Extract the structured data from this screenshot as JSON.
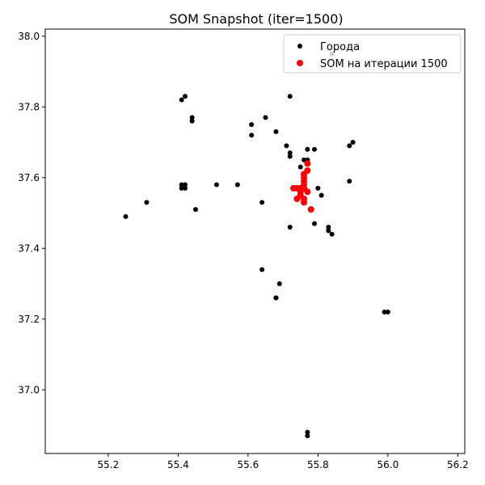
{
  "chart_data": {
    "type": "scatter",
    "title": "SOM Snapshot (iter=1500)",
    "xlabel": "",
    "ylabel": "",
    "xlim": [
      55.02,
      56.22
    ],
    "ylim": [
      36.82,
      38.02
    ],
    "x_ticks": [
      55.2,
      55.4,
      55.6,
      55.8,
      56.0,
      56.2
    ],
    "y_ticks": [
      37.0,
      37.2,
      37.4,
      37.6,
      37.8,
      38.0
    ],
    "x_tick_labels": [
      "55.2",
      "55.4",
      "55.6",
      "55.8",
      "56.0",
      "56.2"
    ],
    "y_tick_labels": [
      "37.0",
      "37.2",
      "37.4",
      "37.6",
      "37.8",
      "38.0"
    ],
    "grid": false,
    "legend_position": "top-right",
    "series": [
      {
        "name": "Города",
        "color": "#000000",
        "marker_size": "small",
        "points": [
          [
            55.42,
            37.83
          ],
          [
            55.41,
            37.82
          ],
          [
            55.44,
            37.77
          ],
          [
            55.44,
            37.76
          ],
          [
            55.72,
            37.83
          ],
          [
            55.65,
            37.77
          ],
          [
            55.61,
            37.75
          ],
          [
            55.61,
            37.72
          ],
          [
            55.68,
            37.73
          ],
          [
            55.84,
            37.95
          ],
          [
            55.9,
            37.7
          ],
          [
            55.89,
            37.69
          ],
          [
            55.71,
            37.69
          ],
          [
            55.77,
            37.68
          ],
          [
            55.79,
            37.68
          ],
          [
            55.72,
            37.67
          ],
          [
            55.72,
            37.66
          ],
          [
            55.76,
            37.65
          ],
          [
            55.77,
            37.65
          ],
          [
            55.75,
            37.63
          ],
          [
            55.89,
            37.59
          ],
          [
            55.41,
            37.58
          ],
          [
            55.42,
            37.58
          ],
          [
            55.42,
            37.57
          ],
          [
            55.41,
            37.57
          ],
          [
            55.51,
            37.58
          ],
          [
            55.57,
            37.58
          ],
          [
            55.73,
            37.57
          ],
          [
            55.8,
            37.57
          ],
          [
            55.81,
            37.55
          ],
          [
            55.64,
            37.53
          ],
          [
            55.31,
            37.53
          ],
          [
            55.25,
            37.49
          ],
          [
            55.45,
            37.51
          ],
          [
            55.79,
            37.47
          ],
          [
            55.72,
            37.46
          ],
          [
            55.83,
            37.46
          ],
          [
            55.83,
            37.45
          ],
          [
            55.84,
            37.44
          ],
          [
            55.64,
            37.34
          ],
          [
            55.69,
            37.3
          ],
          [
            55.68,
            37.26
          ],
          [
            55.68,
            37.26
          ],
          [
            55.99,
            37.22
          ],
          [
            56.0,
            37.22
          ],
          [
            55.77,
            36.87
          ],
          [
            55.77,
            36.88
          ]
        ]
      },
      {
        "name": "SOM на итерации 1500",
        "color": "#ff0000",
        "marker_size": "medium",
        "points": [
          [
            55.77,
            37.64
          ],
          [
            55.77,
            37.62
          ],
          [
            55.76,
            37.61
          ],
          [
            55.76,
            37.6
          ],
          [
            55.76,
            37.59
          ],
          [
            55.76,
            37.58
          ],
          [
            55.76,
            37.57
          ],
          [
            55.77,
            37.56
          ],
          [
            55.75,
            37.56
          ],
          [
            55.74,
            37.57
          ],
          [
            55.73,
            37.57
          ],
          [
            55.75,
            37.55
          ],
          [
            55.76,
            37.54
          ],
          [
            55.76,
            37.53
          ],
          [
            55.74,
            37.54
          ],
          [
            55.78,
            37.51
          ],
          [
            55.75,
            37.57
          ]
        ]
      }
    ]
  }
}
